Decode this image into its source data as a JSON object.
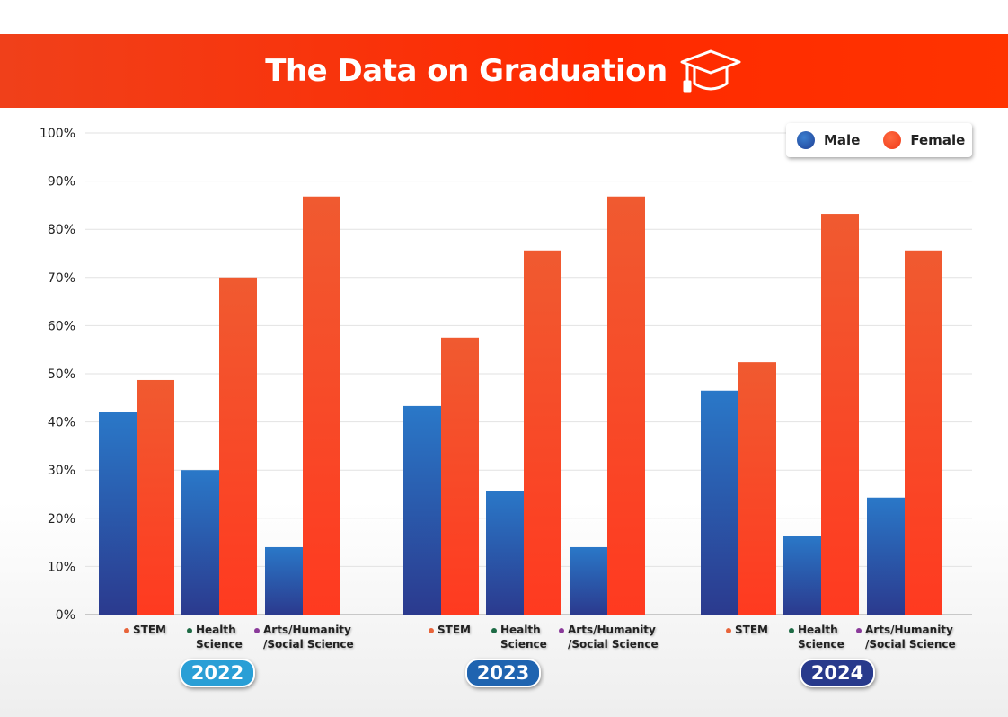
{
  "header": {
    "title": "The Data on Graduation",
    "icon": "graduation-cap-icon"
  },
  "legend": {
    "male": "Male",
    "female": "Female"
  },
  "colors": {
    "male": "#2a63b8",
    "female": "#ff4422",
    "stem": "#e8643a",
    "health": "#1e6b45",
    "arts": "#8a3a9a",
    "y2022": "#2a9fd6",
    "y2023": "#1f64b0",
    "y2024": "#283a8c"
  },
  "chart_data": {
    "type": "bar",
    "title": "The Data on Graduation",
    "ylim": [
      0,
      100
    ],
    "yticks": [
      "0%",
      "10%",
      "20%",
      "30%",
      "40%",
      "50%",
      "60%",
      "70%",
      "80%",
      "90%",
      "100%"
    ],
    "categories": [
      "STEM",
      "Health Science",
      "Arts/Humanity/Social Science"
    ],
    "category_labels": [
      [
        "STEM",
        ""
      ],
      [
        "Health",
        "Science"
      ],
      [
        "Arts/Humanity",
        "/Social Science"
      ]
    ],
    "legend_placement": "top-right",
    "groups": [
      {
        "year": "2022",
        "series": [
          {
            "name": "Male",
            "values": [
              42,
              30,
              14
            ]
          },
          {
            "name": "Female",
            "values": [
              48.7,
              70,
              86.8
            ]
          }
        ]
      },
      {
        "year": "2023",
        "series": [
          {
            "name": "Male",
            "values": [
              43.3,
              25.7,
              14
            ]
          },
          {
            "name": "Female",
            "values": [
              57.5,
              75.6,
              86.8
            ]
          }
        ]
      },
      {
        "year": "2024",
        "series": [
          {
            "name": "Male",
            "values": [
              46.5,
              16.4,
              24.3
            ]
          },
          {
            "name": "Female",
            "values": [
              52.4,
              83.2,
              75.6
            ]
          }
        ]
      }
    ]
  }
}
